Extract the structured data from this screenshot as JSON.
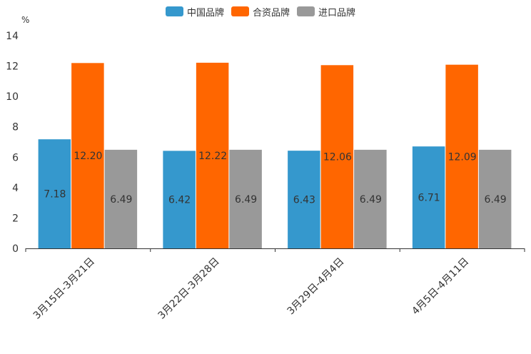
{
  "chart_data": {
    "type": "bar",
    "unit_label": "%",
    "categories": [
      "3月15日-3月21日",
      "3月22日-3月28日",
      "3月29日-4月4日",
      "4月5日-4月11日"
    ],
    "series": [
      {
        "name": "中国品牌",
        "color": "#3598CD",
        "values": [
          7.18,
          6.42,
          6.43,
          6.71
        ],
        "labels": [
          "7.18",
          "6.42",
          "6.43",
          "6.71"
        ]
      },
      {
        "name": "合资品牌",
        "color": "#FF6600",
        "values": [
          12.2,
          12.22,
          12.06,
          12.09
        ],
        "labels": [
          "12.20",
          "12.22",
          "12.06",
          "12.09"
        ]
      },
      {
        "name": "进口品牌",
        "color": "#999999",
        "values": [
          6.49,
          6.49,
          6.49,
          6.49
        ],
        "labels": [
          "6.49",
          "6.49",
          "6.49",
          "6.49"
        ]
      }
    ],
    "ylim": [
      0,
      14
    ],
    "yticks": [
      0,
      2,
      4,
      6,
      8,
      10,
      12,
      14
    ],
    "legend_position": "top-center"
  }
}
